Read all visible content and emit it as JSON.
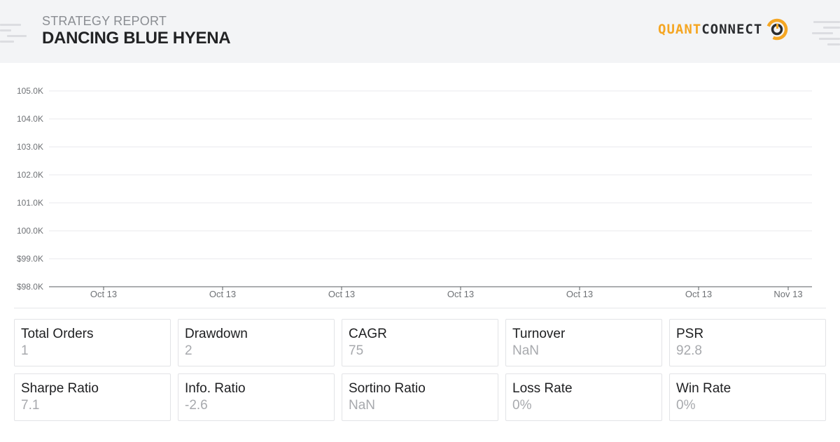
{
  "header": {
    "subtitle": "STRATEGY REPORT",
    "title": "DANCING BLUE HYENA",
    "logo_part1": "QUANT",
    "logo_part2": "CONNECT"
  },
  "colors": {
    "accent": "#f5a623",
    "gridline": "#e8e9ec",
    "axis": "#5a5d61",
    "tick_text": "#6e7175"
  },
  "chart_data": {
    "type": "line",
    "title": "",
    "xlabel": "",
    "ylabel": "",
    "ylim": [
      98000,
      105000
    ],
    "y_ticks": [
      {
        "value": 105000,
        "label": "105.0K"
      },
      {
        "value": 104000,
        "label": "104.0K"
      },
      {
        "value": 103000,
        "label": "103.0K"
      },
      {
        "value": 102000,
        "label": "102.0K"
      },
      {
        "value": 101000,
        "label": "101.0K"
      },
      {
        "value": 100000,
        "label": "100.0K"
      },
      {
        "value": 99000,
        "label": "$99.0K"
      },
      {
        "value": 98000,
        "label": "$98.0K"
      }
    ],
    "x_ticks": [
      "Oct 13",
      "Oct 13",
      "Oct 13",
      "Oct 13",
      "Oct 13",
      "Oct 13",
      "Nov 13"
    ],
    "series": [],
    "grid": true,
    "legend": "none"
  },
  "stats": [
    {
      "label": "Total Orders",
      "value": "1"
    },
    {
      "label": "Drawdown",
      "value": "2"
    },
    {
      "label": "CAGR",
      "value": "75"
    },
    {
      "label": "Turnover",
      "value": "NaN"
    },
    {
      "label": "PSR",
      "value": "92.8"
    },
    {
      "label": "Sharpe Ratio",
      "value": "7.1"
    },
    {
      "label": "Info. Ratio",
      "value": "-2.6"
    },
    {
      "label": "Sortino Ratio",
      "value": "NaN"
    },
    {
      "label": "Loss Rate",
      "value": "0%"
    },
    {
      "label": "Win Rate",
      "value": "0%"
    }
  ]
}
